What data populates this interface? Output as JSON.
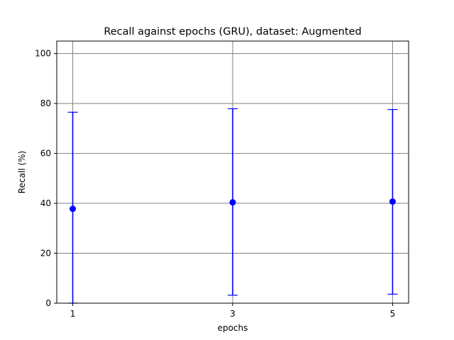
{
  "chart_data": {
    "type": "scatter",
    "title": "Recall against epochs (GRU), dataset: Augmented",
    "xlabel": "epochs",
    "ylabel": "Recall (%)",
    "x": [
      1,
      3,
      5
    ],
    "xticks": [
      "1",
      "3",
      "5"
    ],
    "xlim": [
      0.8,
      5.2
    ],
    "yticks": [
      "0",
      "20",
      "40",
      "60",
      "80",
      "100"
    ],
    "ylim": [
      0,
      105
    ],
    "grid": true,
    "series": [
      {
        "values": [
          37.8,
          40.4,
          40.7
        ],
        "error_low": [
          0,
          3.2,
          3.6
        ],
        "error_high": [
          76.5,
          77.9,
          77.6
        ],
        "color": "#0000ff"
      }
    ],
    "grid_color": "#808080"
  }
}
